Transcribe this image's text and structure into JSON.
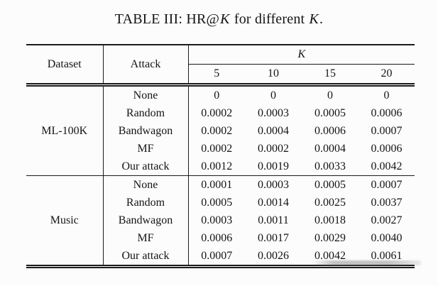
{
  "caption": {
    "prefix": "TABLE III: HR@",
    "k_symbol_1": "K",
    "middle": " for different ",
    "k_symbol_2": "K",
    "suffix": "."
  },
  "colors": {
    "background": "#fcfcfc",
    "text": "#141414",
    "rule": "#1b1b1b"
  },
  "table": {
    "headers": {
      "dataset": "Dataset",
      "attack": "Attack",
      "k_group": "K",
      "k_values": [
        "5",
        "10",
        "15",
        "20"
      ]
    },
    "sections": [
      {
        "dataset": "ML-100K",
        "rows": [
          {
            "attack": "None",
            "bold": false,
            "values": [
              "0",
              "0",
              "0",
              "0"
            ]
          },
          {
            "attack": "Random",
            "bold": false,
            "values": [
              "0.0002",
              "0.0003",
              "0.0005",
              "0.0006"
            ]
          },
          {
            "attack": "Bandwagon",
            "bold": false,
            "values": [
              "0.0002",
              "0.0004",
              "0.0006",
              "0.0007"
            ]
          },
          {
            "attack": "MF",
            "bold": false,
            "values": [
              "0.0002",
              "0.0002",
              "0.0004",
              "0.0006"
            ]
          },
          {
            "attack": "Our attack",
            "bold": true,
            "values": [
              "0.0012",
              "0.0019",
              "0.0033",
              "0.0042"
            ]
          }
        ]
      },
      {
        "dataset": "Music",
        "rows": [
          {
            "attack": "None",
            "bold": false,
            "values": [
              "0.0001",
              "0.0003",
              "0.0005",
              "0.0007"
            ]
          },
          {
            "attack": "Random",
            "bold": false,
            "values": [
              "0.0005",
              "0.0014",
              "0.0025",
              "0.0037"
            ]
          },
          {
            "attack": "Bandwagon",
            "bold": false,
            "values": [
              "0.0003",
              "0.0011",
              "0.0018",
              "0.0027"
            ]
          },
          {
            "attack": "MF",
            "bold": false,
            "values": [
              "0.0006",
              "0.0017",
              "0.0029",
              "0.0040"
            ]
          },
          {
            "attack": "Our attack",
            "bold": true,
            "values": [
              "0.0007",
              "0.0026",
              "0.0042",
              "0.0061"
            ]
          }
        ]
      }
    ]
  }
}
